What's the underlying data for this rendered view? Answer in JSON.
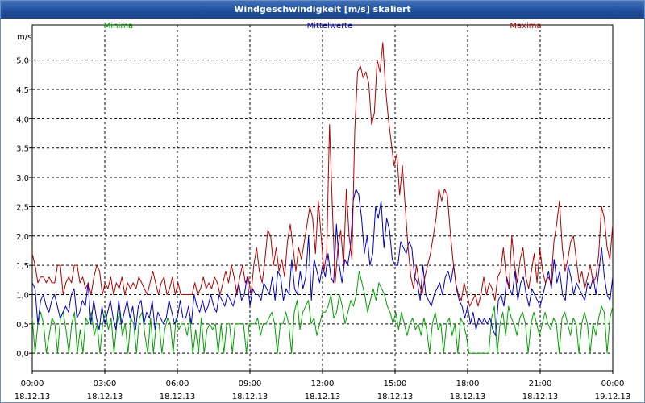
{
  "window": {
    "title": "Windgeschwindigkeit [m/s] skaliert"
  },
  "chart_data": {
    "type": "line",
    "title": "Windgeschwindigkeit [m/s] skaliert",
    "ylabel": "m/s",
    "ylim": [
      -0.3,
      5.6
    ],
    "xlim_hours": [
      0,
      24
    ],
    "y_ticks": [
      "0,0",
      "0,5",
      "1,0",
      "1,5",
      "2,0",
      "2,5",
      "3,0",
      "3,5",
      "4,0",
      "4,5",
      "5,0"
    ],
    "y_tick_values": [
      0,
      0.5,
      1,
      1.5,
      2,
      2.5,
      3,
      3.5,
      4,
      4.5,
      5
    ],
    "x_ticks": [
      {
        "time": "00:00",
        "date": "18.12.13"
      },
      {
        "time": "03:00",
        "date": "18.12.13"
      },
      {
        "time": "06:00",
        "date": "18.12.13"
      },
      {
        "time": "09:00",
        "date": "18.12.13"
      },
      {
        "time": "12:00",
        "date": "18.12.13"
      },
      {
        "time": "15:00",
        "date": "18.12.13"
      },
      {
        "time": "18:00",
        "date": "18.12.13"
      },
      {
        "time": "21:00",
        "date": "18.12.13"
      },
      {
        "time": "00:00",
        "date": "19.12.13"
      }
    ],
    "grid": true,
    "series": [
      {
        "name": "Minima",
        "color": "#00a000",
        "values": [
          0.6,
          0.0,
          0.5,
          0.7,
          0.5,
          0.0,
          0.3,
          0.6,
          0.5,
          0.0,
          0.6,
          0.7,
          0.4,
          0.0,
          0.5,
          0.7,
          0.0,
          0.4,
          0.0,
          0.6,
          0.5,
          0.7,
          0.3,
          0.5,
          0.0,
          0.5,
          0.7,
          0.4,
          0.6,
          0.0,
          0.5,
          0.7,
          0.3,
          0.5,
          0.0,
          0.6,
          0.5,
          0.0,
          0.6,
          0.7,
          0.3,
          0.0,
          0.6,
          0.0,
          0.5,
          0.5,
          0.0,
          0.4,
          0.6,
          0.5,
          0.0,
          0.6,
          0.4,
          0.5,
          0.5,
          0.3,
          0.6,
          0.0,
          0.4,
          0.0,
          0.6,
          0.0,
          0.4,
          0.5,
          0.4,
          0.5,
          0.0,
          0.5,
          0.0,
          0.5,
          0.5,
          0.0,
          0.5,
          0.5,
          0.5,
          0.5,
          0.0,
          0.5,
          0.5,
          0.5,
          0.6,
          0.3,
          0.5,
          0.5,
          0.6,
          0.7,
          0.5,
          0.0,
          0.5,
          0.5,
          0.7,
          0.5,
          0.0,
          0.7,
          0.9,
          0.4,
          0.7,
          0.8,
          0.9,
          0.5,
          0.6,
          0.3,
          0.5,
          0.7,
          0.7,
          0.8,
          1.0,
          0.6,
          0.7,
          1.0,
          0.8,
          0.5,
          0.7,
          0.9,
          0.8,
          1.0,
          1.4,
          1.2,
          1.0,
          0.7,
          0.9,
          1.1,
          0.9,
          1.2,
          1.1,
          1.0,
          0.8,
          0.7,
          0.5,
          0.7,
          0.4,
          0.7,
          0.5,
          0.3,
          0.5,
          0.6,
          0.4,
          0.5,
          0.3,
          0.6,
          0.4,
          0.0,
          0.5,
          0.7,
          0.4,
          0.5,
          0.0,
          0.5,
          0.6,
          0.3,
          0.5,
          0.0,
          0.6,
          0.5,
          0.3,
          0.0,
          0.0,
          0.0,
          0.0,
          0.0,
          0.0,
          0.0,
          0.0,
          0.6,
          0.8,
          0.0,
          0.5,
          0.7,
          0.3,
          0.8,
          0.6,
          0.5,
          0.3,
          0.6,
          0.7,
          0.5,
          0.0,
          0.5,
          0.7,
          0.5,
          0.3,
          0.5,
          0.7,
          0.5,
          0.4,
          0.6,
          0.5,
          0.0,
          0.6,
          0.7,
          0.5,
          0.3,
          0.6,
          0.5,
          0.0,
          0.5,
          0.7,
          0.5,
          0.0,
          0.5,
          0.3,
          0.6,
          0.8,
          0.7,
          0.0,
          0.6,
          0.8
        ]
      },
      {
        "name": "Mittelwerte",
        "color": "#0000c0",
        "values": [
          1.2,
          1.1,
          0.5,
          0.9,
          1.0,
          0.8,
          0.7,
          0.9,
          1.0,
          0.8,
          0.6,
          0.7,
          0.8,
          0.7,
          1.0,
          1.1,
          0.6,
          0.7,
          0.9,
          0.8,
          1.2,
          0.5,
          0.9,
          0.6,
          0.4,
          0.8,
          0.5,
          0.7,
          0.9,
          0.6,
          0.4,
          0.9,
          0.5,
          0.7,
          0.9,
          0.6,
          0.8,
          0.4,
          0.8,
          0.9,
          0.5,
          0.7,
          0.6,
          0.9,
          0.4,
          0.7,
          0.6,
          0.5,
          0.6,
          0.9,
          0.7,
          0.5,
          0.6,
          0.9,
          0.6,
          0.6,
          0.8,
          0.5,
          1.0,
          0.8,
          0.7,
          0.9,
          0.7,
          0.8,
          1.0,
          0.8,
          0.7,
          1.0,
          0.9,
          0.8,
          1.0,
          0.9,
          0.8,
          1.0,
          1.2,
          0.9,
          1.0,
          1.3,
          0.8,
          1.1,
          1.0,
          1.0,
          0.9,
          1.2,
          1.1,
          1.0,
          1.3,
          0.9,
          1.4,
          1.3,
          0.9,
          1.1,
          1.0,
          1.6,
          1.1,
          1.0,
          1.4,
          1.1,
          1.3,
          2.0,
          0.9,
          1.6,
          1.4,
          1.2,
          1.5,
          1.3,
          1.7,
          1.3,
          1.2,
          2.2,
          1.5,
          1.2,
          1.6,
          1.5,
          1.8,
          2.6,
          2.8,
          2.7,
          2.3,
          1.7,
          2.0,
          1.5,
          1.7,
          2.5,
          2.3,
          2.6,
          1.8,
          2.3,
          2.1,
          1.6,
          1.5,
          1.5,
          1.9,
          1.8,
          1.7,
          1.9,
          1.8,
          1.3,
          1.2,
          0.9,
          1.5,
          1.0,
          0.9,
          0.8,
          1.0,
          1.1,
          1.2,
          1.0,
          1.3,
          1.4,
          1.2,
          1.5,
          1.1,
          0.9,
          0.8,
          0.6,
          0.8,
          0.5,
          0.7,
          0.4,
          0.6,
          0.5,
          0.6,
          0.5,
          0.6,
          0.4,
          0.3,
          0.9,
          1.0,
          0.8,
          1.3,
          1.1,
          1.0,
          1.4,
          0.9,
          1.2,
          1.3,
          1.0,
          0.8,
          1.1,
          1.0,
          0.9,
          0.8,
          1.0,
          1.2,
          1.4,
          1.1,
          1.6,
          1.2,
          1.4,
          1.0,
          0.9,
          1.5,
          1.3,
          1.0,
          1.2,
          1.1,
          1.0,
          0.9,
          1.2,
          1.1,
          1.3,
          1.0,
          1.4,
          1.8,
          1.3,
          1.0,
          0.9,
          1.3
        ]
      },
      {
        "name": "Maxima",
        "color": "#b00000",
        "values": [
          1.7,
          1.5,
          1.2,
          1.3,
          1.3,
          1.2,
          1.3,
          1.2,
          1.2,
          1.5,
          1.5,
          1.0,
          1.2,
          1.3,
          1.2,
          1.5,
          1.5,
          1.2,
          1.3,
          1.1,
          1.2,
          1.0,
          1.3,
          1.5,
          1.4,
          1.0,
          1.2,
          1.1,
          1.3,
          1.0,
          1.2,
          1.1,
          1.3,
          1.0,
          1.2,
          1.1,
          1.2,
          1.1,
          1.3,
          1.2,
          1.1,
          1.0,
          1.2,
          1.4,
          1.2,
          1.0,
          1.2,
          1.3,
          1.0,
          1.1,
          1.3,
          1.0,
          1.2,
          1.0,
          1.0,
          1.0,
          1.0,
          1.0,
          1.2,
          1.0,
          1.1,
          1.3,
          1.1,
          1.2,
          1.1,
          1.3,
          1.2,
          1.0,
          1.2,
          1.4,
          1.2,
          1.5,
          1.3,
          1.0,
          1.3,
          1.5,
          1.2,
          1.3,
          1.0,
          1.5,
          1.8,
          1.4,
          1.2,
          1.6,
          2.1,
          2.0,
          1.5,
          1.8,
          1.4,
          1.6,
          1.3,
          1.9,
          2.2,
          1.8,
          1.4,
          1.8,
          1.6,
          1.9,
          2.2,
          2.5,
          2.3,
          1.7,
          2.6,
          2.0,
          1.4,
          1.7,
          3.9,
          2.5,
          1.2,
          1.8,
          2.1,
          1.5,
          2.8,
          2.0,
          1.6,
          3.8,
          4.8,
          4.9,
          4.7,
          4.8,
          4.6,
          3.9,
          4.1,
          5.0,
          4.8,
          5.3,
          4.5,
          4.0,
          3.6,
          3.2,
          3.4,
          2.7,
          3.2,
          2.5,
          1.8,
          1.3,
          1.1,
          1.5,
          1.2,
          1.0,
          1.3,
          1.5,
          1.7,
          2.0,
          2.3,
          2.8,
          2.6,
          2.8,
          2.7,
          2.1,
          1.6,
          1.2,
          1.0,
          0.9,
          1.2,
          1.0,
          0.8,
          0.9,
          1.0,
          0.8,
          1.0,
          1.3,
          1.0,
          1.2,
          1.1,
          0.9,
          1.3,
          1.4,
          1.8,
          1.3,
          1.1,
          2.0,
          1.5,
          1.2,
          1.6,
          1.8,
          1.3,
          1.1,
          1.4,
          1.7,
          1.2,
          1.8,
          1.4,
          1.2,
          1.3,
          1.2,
          1.9,
          2.2,
          2.6,
          1.8,
          1.4,
          1.6,
          1.9,
          2.0,
          1.6,
          1.2,
          1.4,
          1.1,
          1.3,
          1.5,
          1.2,
          1.3,
          1.7,
          2.5,
          2.3,
          1.8,
          1.6,
          2.2
        ]
      }
    ]
  }
}
